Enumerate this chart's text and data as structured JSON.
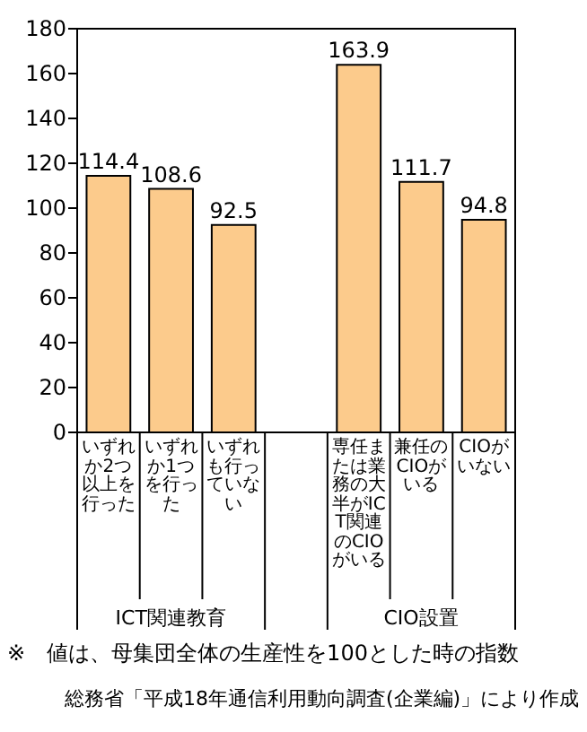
{
  "chart_data": {
    "type": "bar",
    "categories": [
      "いずれか2つ以上を行った",
      "いずれか1つを行った",
      "いずれも行っていない",
      null,
      "専任または業務の大半がICT関連のCIOがいる",
      "兼任のCIOがいる",
      "CIOがいない"
    ],
    "values": [
      114.4,
      108.6,
      92.5,
      null,
      163.9,
      111.7,
      94.8
    ],
    "color": "#fccb8c",
    "ylim": [
      0,
      180
    ],
    "yticks": [
      0,
      20,
      40,
      60,
      80,
      100,
      120,
      140,
      160,
      180
    ],
    "data_labels": true,
    "annotations": [
      "ICT関連教育",
      "CIO設置",
      "※　値は、母集団全体の生産性を100とした時の指数",
      "総務省「平成18年通信利用動向調査(企業編)」により作成"
    ]
  }
}
